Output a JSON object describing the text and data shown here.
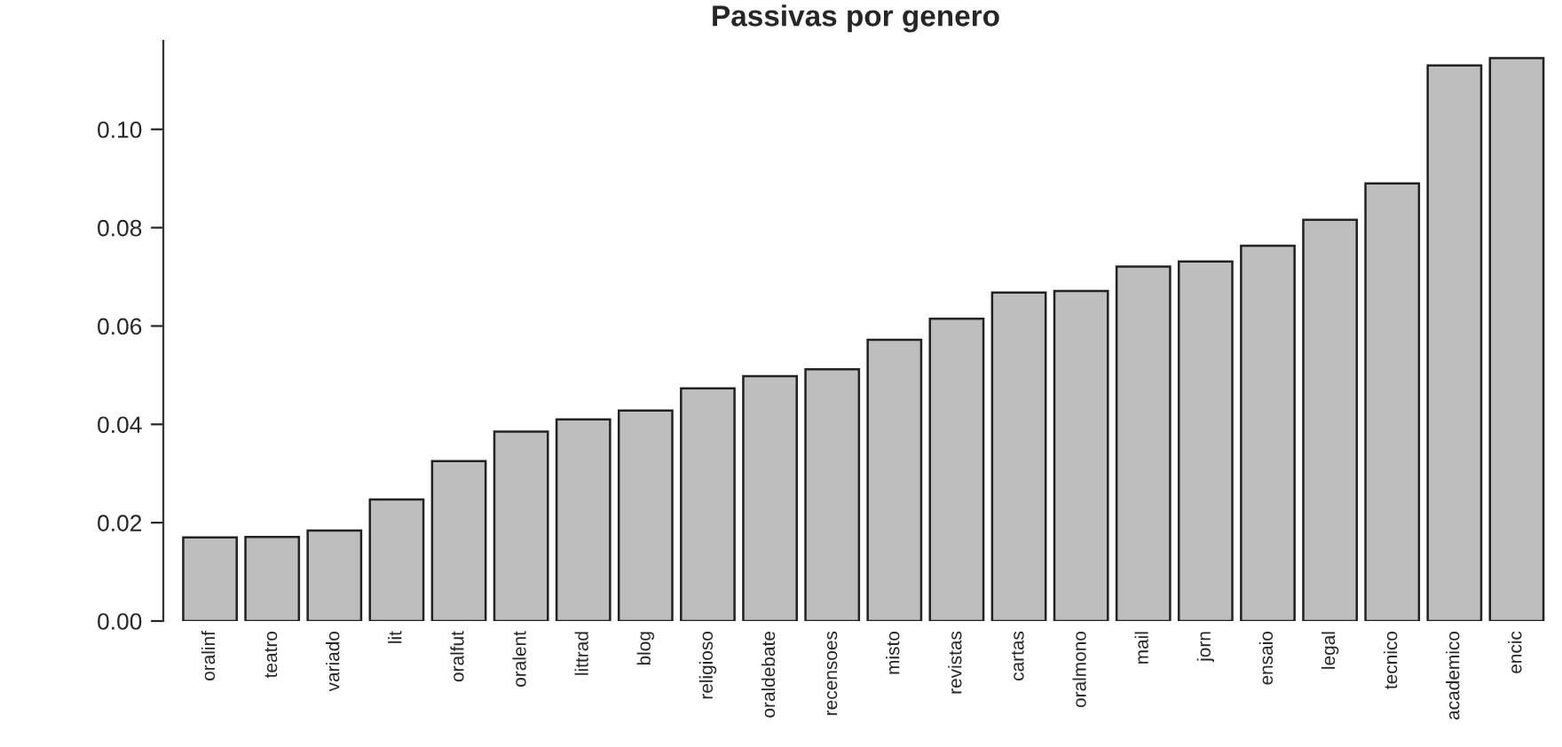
{
  "chart_data": {
    "type": "bar",
    "title": "Passivas por genero",
    "categories": [
      "oralinf",
      "teatro",
      "variado",
      "lit",
      "oralfut",
      "oralent",
      "littrad",
      "blog",
      "religioso",
      "oraldebate",
      "recensoes",
      "misto",
      "revistas",
      "cartas",
      "oralmono",
      "mail",
      "jorn",
      "ensaio",
      "legal",
      "tecnico",
      "academico",
      "encic"
    ],
    "values": [
      0.017,
      0.0171,
      0.0184,
      0.0247,
      0.0325,
      0.0385,
      0.041,
      0.0428,
      0.0473,
      0.0498,
      0.0512,
      0.0572,
      0.0615,
      0.0668,
      0.0671,
      0.0721,
      0.0731,
      0.0763,
      0.0816,
      0.089,
      0.113,
      0.1145
    ],
    "color": "#bebebe",
    "ylim": [
      0,
      0.118
    ],
    "yticks": [
      {
        "value": 0,
        "label": "0.00"
      },
      {
        "value": 0.02,
        "label": "0.02"
      },
      {
        "value": 0.04,
        "label": "0.04"
      },
      {
        "value": 0.06,
        "label": "0.06"
      },
      {
        "value": 0.08,
        "label": "0.08"
      },
      {
        "value": 0.1,
        "label": "0.10"
      }
    ],
    "grid": false
  }
}
